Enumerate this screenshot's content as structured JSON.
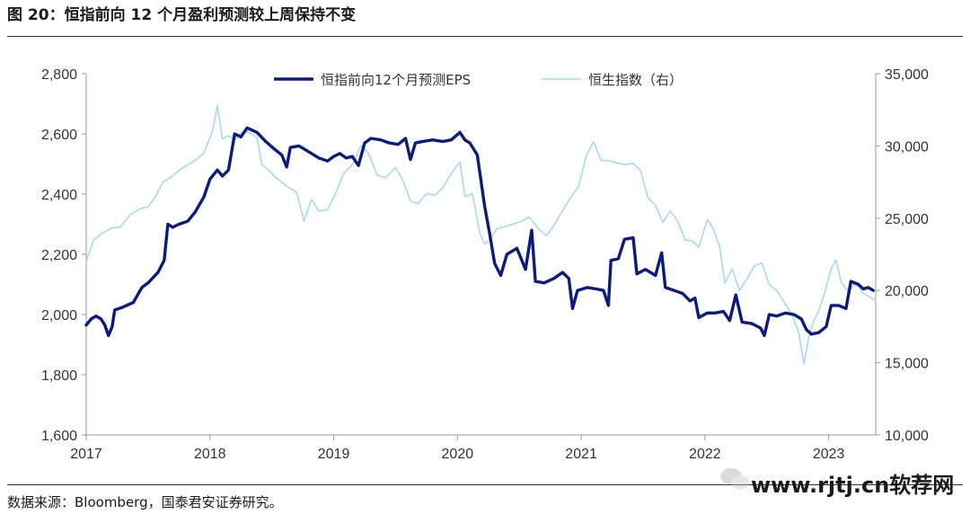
{
  "figure": {
    "title": "图 20：恒指前向 12 个月盈利预测较上周保持不变",
    "source": "数据来源：Bloomberg，国泰君安证券研究。",
    "watermark": "www.rjtj.cn软荐网"
  },
  "chart_data": {
    "type": "line",
    "title": "",
    "x_ticks": [
      "2017",
      "2018",
      "2019",
      "2020",
      "2021",
      "2022",
      "2023"
    ],
    "x_range": [
      2017.0,
      2023.38
    ],
    "y_left": {
      "ticks": [
        "1,600",
        "1,800",
        "2,000",
        "2,200",
        "2,400",
        "2,600",
        "2,800"
      ],
      "range": [
        1600,
        2800
      ]
    },
    "y_right": {
      "ticks": [
        "10,000",
        "15,000",
        "20,000",
        "25,000",
        "30,000",
        "35,000"
      ],
      "range": [
        10000,
        35000
      ]
    },
    "legend_position": "top-center",
    "grid": false,
    "series": [
      {
        "name": "恒指前向12个月预测EPS",
        "axis": "left",
        "color": "#0d1b7a",
        "points": [
          [
            2017.0,
            1965
          ],
          [
            2017.04,
            1985
          ],
          [
            2017.08,
            1995
          ],
          [
            2017.12,
            1985
          ],
          [
            2017.15,
            1965
          ],
          [
            2017.18,
            1930
          ],
          [
            2017.21,
            1960
          ],
          [
            2017.23,
            2015
          ],
          [
            2017.3,
            2025
          ],
          [
            2017.38,
            2040
          ],
          [
            2017.45,
            2090
          ],
          [
            2017.5,
            2105
          ],
          [
            2017.58,
            2140
          ],
          [
            2017.63,
            2180
          ],
          [
            2017.66,
            2300
          ],
          [
            2017.7,
            2290
          ],
          [
            2017.75,
            2300
          ],
          [
            2017.82,
            2310
          ],
          [
            2017.88,
            2340
          ],
          [
            2017.95,
            2390
          ],
          [
            2018.0,
            2450
          ],
          [
            2018.06,
            2480
          ],
          [
            2018.1,
            2460
          ],
          [
            2018.15,
            2480
          ],
          [
            2018.2,
            2600
          ],
          [
            2018.25,
            2590
          ],
          [
            2018.3,
            2620
          ],
          [
            2018.38,
            2605
          ],
          [
            2018.45,
            2575
          ],
          [
            2018.52,
            2550
          ],
          [
            2018.58,
            2530
          ],
          [
            2018.62,
            2490
          ],
          [
            2018.65,
            2555
          ],
          [
            2018.72,
            2560
          ],
          [
            2018.8,
            2540
          ],
          [
            2018.88,
            2520
          ],
          [
            2018.95,
            2510
          ],
          [
            2019.0,
            2525
          ],
          [
            2019.05,
            2535
          ],
          [
            2019.1,
            2520
          ],
          [
            2019.15,
            2525
          ],
          [
            2019.2,
            2495
          ],
          [
            2019.25,
            2570
          ],
          [
            2019.3,
            2585
          ],
          [
            2019.38,
            2580
          ],
          [
            2019.45,
            2570
          ],
          [
            2019.52,
            2565
          ],
          [
            2019.58,
            2585
          ],
          [
            2019.62,
            2515
          ],
          [
            2019.66,
            2570
          ],
          [
            2019.72,
            2575
          ],
          [
            2019.8,
            2580
          ],
          [
            2019.88,
            2575
          ],
          [
            2019.95,
            2580
          ],
          [
            2020.02,
            2605
          ],
          [
            2020.06,
            2580
          ],
          [
            2020.1,
            2570
          ],
          [
            2020.16,
            2530
          ],
          [
            2020.22,
            2360
          ],
          [
            2020.26,
            2270
          ],
          [
            2020.3,
            2170
          ],
          [
            2020.35,
            2130
          ],
          [
            2020.4,
            2200
          ],
          [
            2020.48,
            2220
          ],
          [
            2020.55,
            2150
          ],
          [
            2020.6,
            2280
          ],
          [
            2020.63,
            2110
          ],
          [
            2020.7,
            2105
          ],
          [
            2020.78,
            2120
          ],
          [
            2020.85,
            2140
          ],
          [
            2020.9,
            2120
          ],
          [
            2020.93,
            2020
          ],
          [
            2020.97,
            2080
          ],
          [
            2021.05,
            2090
          ],
          [
            2021.12,
            2085
          ],
          [
            2021.18,
            2080
          ],
          [
            2021.22,
            2030
          ],
          [
            2021.24,
            2180
          ],
          [
            2021.3,
            2185
          ],
          [
            2021.35,
            2250
          ],
          [
            2021.42,
            2255
          ],
          [
            2021.45,
            2135
          ],
          [
            2021.52,
            2150
          ],
          [
            2021.6,
            2130
          ],
          [
            2021.65,
            2205
          ],
          [
            2021.68,
            2090
          ],
          [
            2021.75,
            2080
          ],
          [
            2021.82,
            2070
          ],
          [
            2021.88,
            2045
          ],
          [
            2021.92,
            2055
          ],
          [
            2021.95,
            1990
          ],
          [
            2022.02,
            2005
          ],
          [
            2022.08,
            2005
          ],
          [
            2022.15,
            2010
          ],
          [
            2022.2,
            1980
          ],
          [
            2022.25,
            2065
          ],
          [
            2022.3,
            1975
          ],
          [
            2022.38,
            1970
          ],
          [
            2022.45,
            1955
          ],
          [
            2022.48,
            1930
          ],
          [
            2022.52,
            2000
          ],
          [
            2022.58,
            1995
          ],
          [
            2022.65,
            2005
          ],
          [
            2022.72,
            2000
          ],
          [
            2022.78,
            1985
          ],
          [
            2022.82,
            1950
          ],
          [
            2022.86,
            1935
          ],
          [
            2022.92,
            1940
          ],
          [
            2022.98,
            1960
          ],
          [
            2023.02,
            2030
          ],
          [
            2023.08,
            2030
          ],
          [
            2023.14,
            2020
          ],
          [
            2023.18,
            2110
          ],
          [
            2023.24,
            2100
          ],
          [
            2023.28,
            2085
          ],
          [
            2023.32,
            2090
          ],
          [
            2023.36,
            2080
          ]
        ]
      },
      {
        "name": "恒生指数（右）",
        "axis": "right",
        "color": "#a8d8ee",
        "points": [
          [
            2017.0,
            22000
          ],
          [
            2017.06,
            23500
          ],
          [
            2017.12,
            23900
          ],
          [
            2017.2,
            24300
          ],
          [
            2017.28,
            24400
          ],
          [
            2017.35,
            25200
          ],
          [
            2017.42,
            25600
          ],
          [
            2017.5,
            25800
          ],
          [
            2017.56,
            26500
          ],
          [
            2017.62,
            27500
          ],
          [
            2017.68,
            27800
          ],
          [
            2017.75,
            28300
          ],
          [
            2017.82,
            28700
          ],
          [
            2017.88,
            29000
          ],
          [
            2017.95,
            29500
          ],
          [
            2018.02,
            31000
          ],
          [
            2018.06,
            32800
          ],
          [
            2018.1,
            30500
          ],
          [
            2018.15,
            30700
          ],
          [
            2018.2,
            30400
          ],
          [
            2018.25,
            30900
          ],
          [
            2018.3,
            31000
          ],
          [
            2018.38,
            30600
          ],
          [
            2018.42,
            28700
          ],
          [
            2018.48,
            28300
          ],
          [
            2018.52,
            27900
          ],
          [
            2018.58,
            27500
          ],
          [
            2018.62,
            27200
          ],
          [
            2018.7,
            26800
          ],
          [
            2018.76,
            24800
          ],
          [
            2018.82,
            26300
          ],
          [
            2018.88,
            25500
          ],
          [
            2018.95,
            25600
          ],
          [
            2019.02,
            26800
          ],
          [
            2019.08,
            28100
          ],
          [
            2019.15,
            28700
          ],
          [
            2019.22,
            30000
          ],
          [
            2019.28,
            29500
          ],
          [
            2019.35,
            28000
          ],
          [
            2019.42,
            27800
          ],
          [
            2019.5,
            28500
          ],
          [
            2019.56,
            27600
          ],
          [
            2019.62,
            26200
          ],
          [
            2019.68,
            26000
          ],
          [
            2019.75,
            26700
          ],
          [
            2019.82,
            26600
          ],
          [
            2019.88,
            27100
          ],
          [
            2019.95,
            28100
          ],
          [
            2020.02,
            28900
          ],
          [
            2020.06,
            26500
          ],
          [
            2020.12,
            26700
          ],
          [
            2020.18,
            24000
          ],
          [
            2020.22,
            23200
          ],
          [
            2020.26,
            23500
          ],
          [
            2020.32,
            24300
          ],
          [
            2020.38,
            24400
          ],
          [
            2020.45,
            24600
          ],
          [
            2020.52,
            24800
          ],
          [
            2020.58,
            25100
          ],
          [
            2020.66,
            24200
          ],
          [
            2020.72,
            23800
          ],
          [
            2020.78,
            24500
          ],
          [
            2020.84,
            25400
          ],
          [
            2020.92,
            26500
          ],
          [
            2020.98,
            27200
          ],
          [
            2021.04,
            29300
          ],
          [
            2021.1,
            30300
          ],
          [
            2021.16,
            29000
          ],
          [
            2021.22,
            29000
          ],
          [
            2021.3,
            28800
          ],
          [
            2021.36,
            28700
          ],
          [
            2021.42,
            28800
          ],
          [
            2021.48,
            28300
          ],
          [
            2021.54,
            26400
          ],
          [
            2021.6,
            25900
          ],
          [
            2021.66,
            24700
          ],
          [
            2021.72,
            25500
          ],
          [
            2021.78,
            24800
          ],
          [
            2021.84,
            23500
          ],
          [
            2021.9,
            23400
          ],
          [
            2021.95,
            23000
          ],
          [
            2022.02,
            24900
          ],
          [
            2022.06,
            24400
          ],
          [
            2022.12,
            23000
          ],
          [
            2022.16,
            20500
          ],
          [
            2022.22,
            21500
          ],
          [
            2022.28,
            20000
          ],
          [
            2022.34,
            20800
          ],
          [
            2022.4,
            21700
          ],
          [
            2022.46,
            21900
          ],
          [
            2022.52,
            20400
          ],
          [
            2022.58,
            20000
          ],
          [
            2022.64,
            19200
          ],
          [
            2022.7,
            18400
          ],
          [
            2022.76,
            17000
          ],
          [
            2022.8,
            14900
          ],
          [
            2022.84,
            16800
          ],
          [
            2022.88,
            17900
          ],
          [
            2022.92,
            18600
          ],
          [
            2022.96,
            19600
          ],
          [
            2023.02,
            21500
          ],
          [
            2023.06,
            22100
          ],
          [
            2023.1,
            20600
          ],
          [
            2023.16,
            19900
          ],
          [
            2023.22,
            20500
          ],
          [
            2023.28,
            19800
          ],
          [
            2023.34,
            19500
          ],
          [
            2023.38,
            19300
          ]
        ]
      }
    ]
  }
}
